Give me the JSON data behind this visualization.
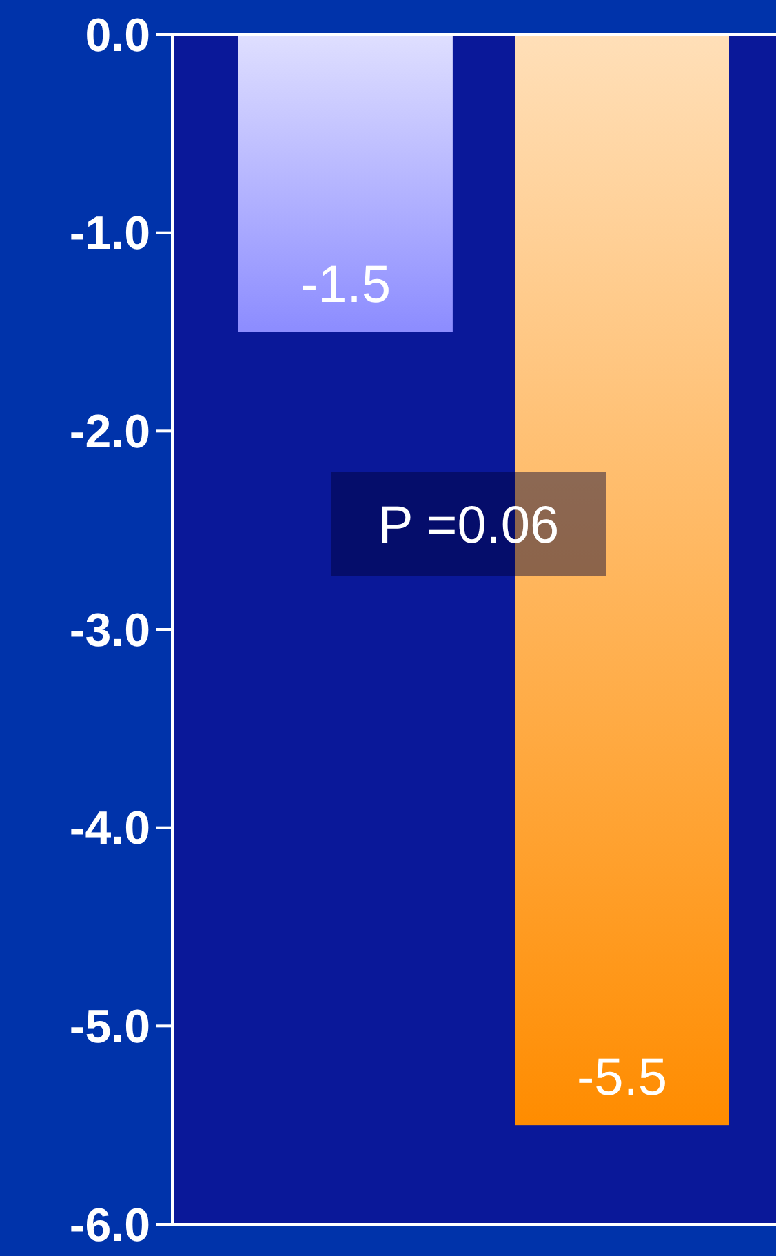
{
  "chart_data": {
    "type": "bar",
    "categories": [
      null,
      null
    ],
    "values": [
      -1.5,
      -5.5
    ],
    "colors": [
      "#8c8cff",
      "#ff8c00"
    ],
    "ylim": [
      -6,
      0
    ],
    "yticks": [
      {
        "value": 0,
        "label": "0.0"
      },
      {
        "value": -1,
        "label": "-1.0"
      },
      {
        "value": -2,
        "label": "-2.0"
      },
      {
        "value": -3,
        "label": "-3.0"
      },
      {
        "value": -4,
        "label": "-4.0"
      },
      {
        "value": -5,
        "label": "-5.0"
      },
      {
        "value": -6,
        "label": "-6.0"
      }
    ],
    "data_labels": true,
    "annotations": [
      "P =0.06"
    ]
  }
}
